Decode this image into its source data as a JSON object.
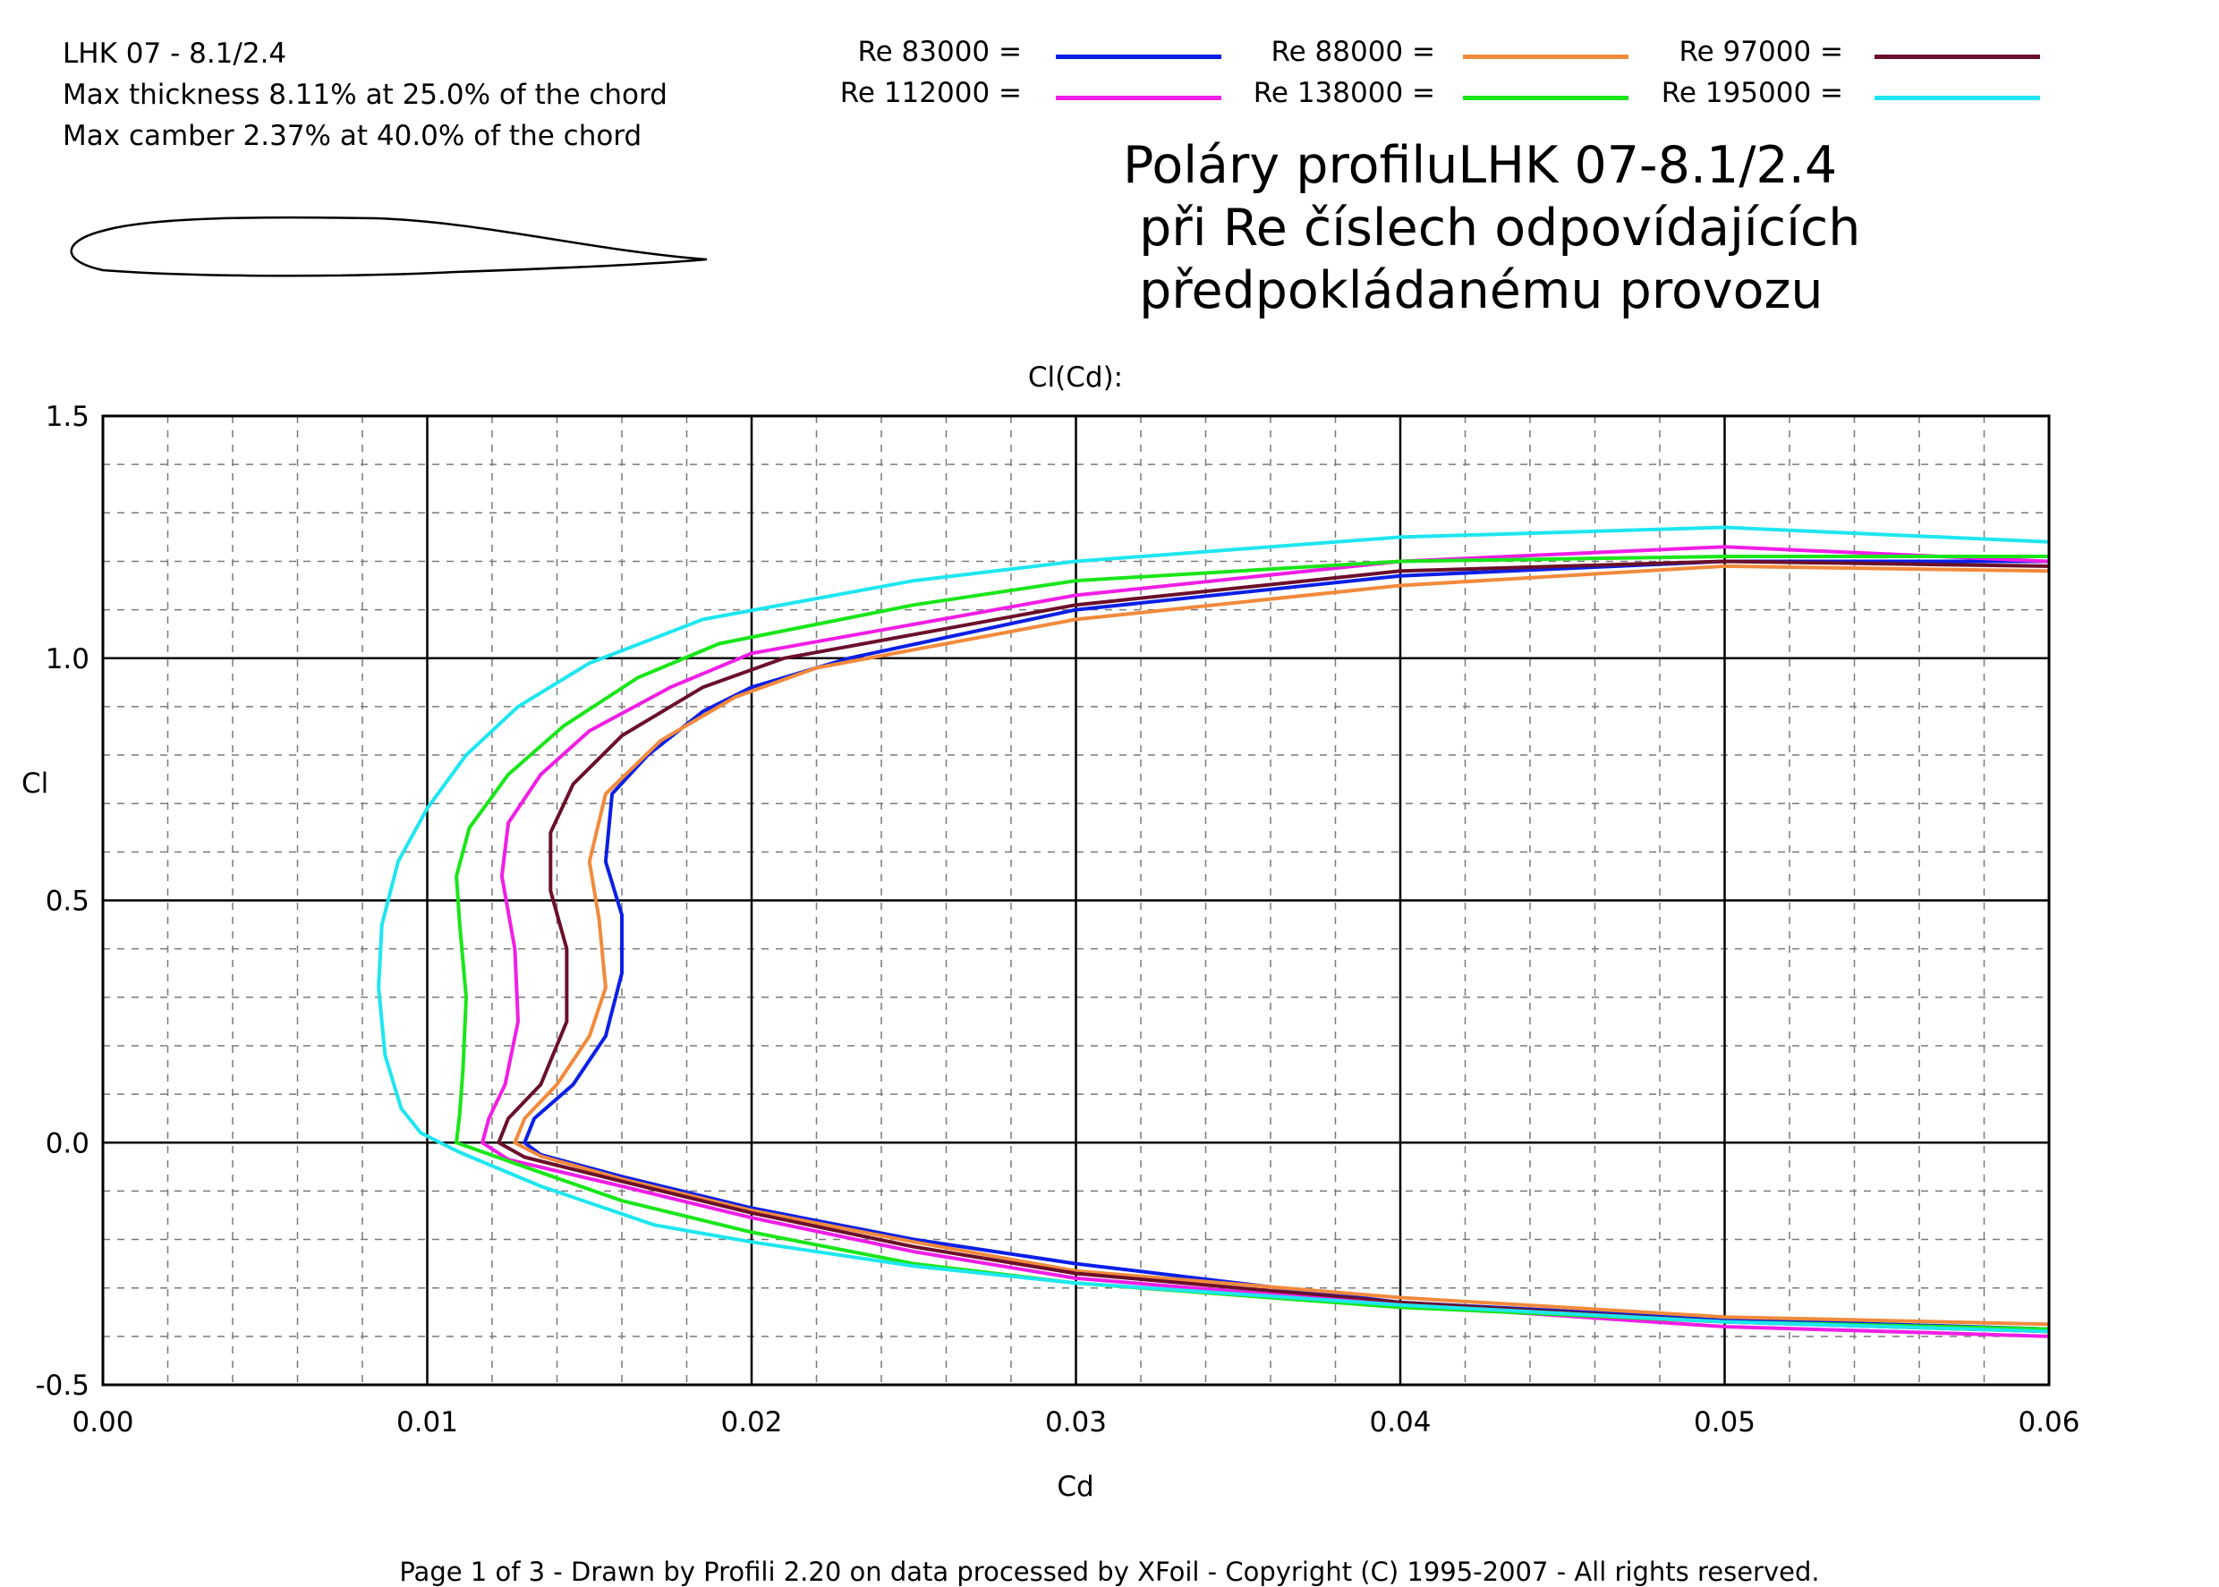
{
  "header": {
    "airfoil_name": "LHK  07 - 8.1/2.4",
    "thickness_line": "Max thickness 8.11% at 25.0% of the chord",
    "camber_line": "Max camber 2.37% at 40.0% of the chord"
  },
  "legend": [
    {
      "label": "Re 83000 =",
      "color": "#0a1fe6"
    },
    {
      "label": "Re 88000 =",
      "color": "#f28a3c"
    },
    {
      "label": "Re 97000 =",
      "color": "#6b0f2a"
    },
    {
      "label": "Re 112000 =",
      "color": "#f01ee6"
    },
    {
      "label": "Re 138000 =",
      "color": "#19e619"
    },
    {
      "label": "Re 195000 =",
      "color": "#1ee6f0"
    }
  ],
  "big_title": {
    "line1": "Poláry profiluLHK 07-8.1/2.4",
    "line2": " při Re číslech odpovídajících",
    "line3": " předpokládanému provozu"
  },
  "footer": "Page 1 of 3   -   Drawn by Profili 2.20 on data processed by  XFoil - Copyright (C) 1995-2007 - All rights reserved.",
  "chart_data": {
    "type": "line",
    "title": "Cl(Cd):",
    "xlabel": "Cd",
    "ylabel": "Cl",
    "xlim": [
      0.0,
      0.06
    ],
    "ylim": [
      -0.5,
      1.5
    ],
    "x_ticks": [
      "0.00",
      "0.01",
      "0.02",
      "0.03",
      "0.04",
      "0.05",
      "0.06"
    ],
    "y_ticks": [
      "-0.5",
      "0.0",
      "0.5",
      "1.0",
      "1.5"
    ],
    "grid": true,
    "series": [
      {
        "name": "Re 83000 =",
        "color": "#0a1fe6",
        "points": [
          [
            0.06,
            -0.385
          ],
          [
            0.05,
            -0.365
          ],
          [
            0.04,
            -0.33
          ],
          [
            0.03,
            -0.25
          ],
          [
            0.025,
            -0.2
          ],
          [
            0.02,
            -0.135
          ],
          [
            0.016,
            -0.07
          ],
          [
            0.0135,
            -0.025
          ],
          [
            0.013,
            0.0
          ],
          [
            0.0133,
            0.05
          ],
          [
            0.0145,
            0.12
          ],
          [
            0.0155,
            0.22
          ],
          [
            0.016,
            0.35
          ],
          [
            0.016,
            0.47
          ],
          [
            0.0155,
            0.58
          ],
          [
            0.0157,
            0.72
          ],
          [
            0.0168,
            0.8
          ],
          [
            0.0185,
            0.89
          ],
          [
            0.02,
            0.94
          ],
          [
            0.023,
            1.0
          ],
          [
            0.03,
            1.1
          ],
          [
            0.04,
            1.17
          ],
          [
            0.05,
            1.2
          ],
          [
            0.06,
            1.2
          ]
        ]
      },
      {
        "name": "Re 88000 =",
        "color": "#f28a3c",
        "points": [
          [
            0.06,
            -0.375
          ],
          [
            0.05,
            -0.36
          ],
          [
            0.04,
            -0.32
          ],
          [
            0.03,
            -0.265
          ],
          [
            0.025,
            -0.205
          ],
          [
            0.02,
            -0.14
          ],
          [
            0.016,
            -0.075
          ],
          [
            0.0135,
            -0.028
          ],
          [
            0.0127,
            0.0
          ],
          [
            0.013,
            0.05
          ],
          [
            0.014,
            0.12
          ],
          [
            0.015,
            0.22
          ],
          [
            0.0155,
            0.32
          ],
          [
            0.0153,
            0.46
          ],
          [
            0.015,
            0.58
          ],
          [
            0.0155,
            0.72
          ],
          [
            0.0172,
            0.83
          ],
          [
            0.0195,
            0.92
          ],
          [
            0.022,
            0.98
          ],
          [
            0.03,
            1.08
          ],
          [
            0.04,
            1.15
          ],
          [
            0.05,
            1.19
          ],
          [
            0.06,
            1.18
          ]
        ]
      },
      {
        "name": "Re 97000 =",
        "color": "#6b0f2a",
        "points": [
          [
            0.06,
            -0.39
          ],
          [
            0.05,
            -0.37
          ],
          [
            0.04,
            -0.33
          ],
          [
            0.03,
            -0.27
          ],
          [
            0.025,
            -0.215
          ],
          [
            0.02,
            -0.145
          ],
          [
            0.016,
            -0.08
          ],
          [
            0.013,
            -0.03
          ],
          [
            0.0122,
            0.0
          ],
          [
            0.0125,
            0.05
          ],
          [
            0.0135,
            0.12
          ],
          [
            0.0143,
            0.25
          ],
          [
            0.0143,
            0.4
          ],
          [
            0.0138,
            0.52
          ],
          [
            0.0138,
            0.64
          ],
          [
            0.0145,
            0.74
          ],
          [
            0.016,
            0.84
          ],
          [
            0.0185,
            0.94
          ],
          [
            0.021,
            1.0
          ],
          [
            0.03,
            1.11
          ],
          [
            0.04,
            1.18
          ],
          [
            0.05,
            1.2
          ],
          [
            0.06,
            1.19
          ]
        ]
      },
      {
        "name": "Re 112000 =",
        "color": "#f01ee6",
        "points": [
          [
            0.06,
            -0.4
          ],
          [
            0.05,
            -0.38
          ],
          [
            0.04,
            -0.335
          ],
          [
            0.03,
            -0.28
          ],
          [
            0.025,
            -0.225
          ],
          [
            0.02,
            -0.155
          ],
          [
            0.016,
            -0.09
          ],
          [
            0.0125,
            -0.035
          ],
          [
            0.0117,
            0.0
          ],
          [
            0.0119,
            0.05
          ],
          [
            0.0124,
            0.12
          ],
          [
            0.0128,
            0.25
          ],
          [
            0.0127,
            0.4
          ],
          [
            0.0123,
            0.55
          ],
          [
            0.0125,
            0.66
          ],
          [
            0.0135,
            0.76
          ],
          [
            0.015,
            0.85
          ],
          [
            0.0175,
            0.94
          ],
          [
            0.02,
            1.01
          ],
          [
            0.03,
            1.13
          ],
          [
            0.04,
            1.2
          ],
          [
            0.05,
            1.23
          ],
          [
            0.06,
            1.2
          ]
        ]
      },
      {
        "name": "Re 138000 =",
        "color": "#19e619",
        "points": [
          [
            0.06,
            -0.385
          ],
          [
            0.05,
            -0.37
          ],
          [
            0.04,
            -0.34
          ],
          [
            0.03,
            -0.29
          ],
          [
            0.025,
            -0.25
          ],
          [
            0.02,
            -0.185
          ],
          [
            0.016,
            -0.12
          ],
          [
            0.013,
            -0.05
          ],
          [
            0.0109,
            0.0
          ],
          [
            0.011,
            0.06
          ],
          [
            0.0111,
            0.15
          ],
          [
            0.0112,
            0.3
          ],
          [
            0.011,
            0.45
          ],
          [
            0.0109,
            0.55
          ],
          [
            0.0113,
            0.65
          ],
          [
            0.0125,
            0.76
          ],
          [
            0.0142,
            0.86
          ],
          [
            0.0165,
            0.96
          ],
          [
            0.019,
            1.03
          ],
          [
            0.025,
            1.11
          ],
          [
            0.03,
            1.16
          ],
          [
            0.04,
            1.2
          ],
          [
            0.05,
            1.21
          ],
          [
            0.06,
            1.21
          ]
        ]
      },
      {
        "name": "Re 195000 =",
        "color": "#1ee6f0",
        "points": [
          [
            0.06,
            -0.39
          ],
          [
            0.05,
            -0.37
          ],
          [
            0.04,
            -0.335
          ],
          [
            0.03,
            -0.29
          ],
          [
            0.025,
            -0.255
          ],
          [
            0.02,
            -0.205
          ],
          [
            0.017,
            -0.17
          ],
          [
            0.0135,
            -0.09
          ],
          [
            0.011,
            -0.02
          ],
          [
            0.0098,
            0.02
          ],
          [
            0.0092,
            0.07
          ],
          [
            0.0087,
            0.18
          ],
          [
            0.0085,
            0.32
          ],
          [
            0.0086,
            0.45
          ],
          [
            0.0091,
            0.58
          ],
          [
            0.01,
            0.69
          ],
          [
            0.0112,
            0.8
          ],
          [
            0.0128,
            0.9
          ],
          [
            0.015,
            0.99
          ],
          [
            0.0185,
            1.08
          ],
          [
            0.025,
            1.16
          ],
          [
            0.03,
            1.2
          ],
          [
            0.04,
            1.25
          ],
          [
            0.05,
            1.27
          ],
          [
            0.06,
            1.24
          ]
        ]
      }
    ]
  }
}
